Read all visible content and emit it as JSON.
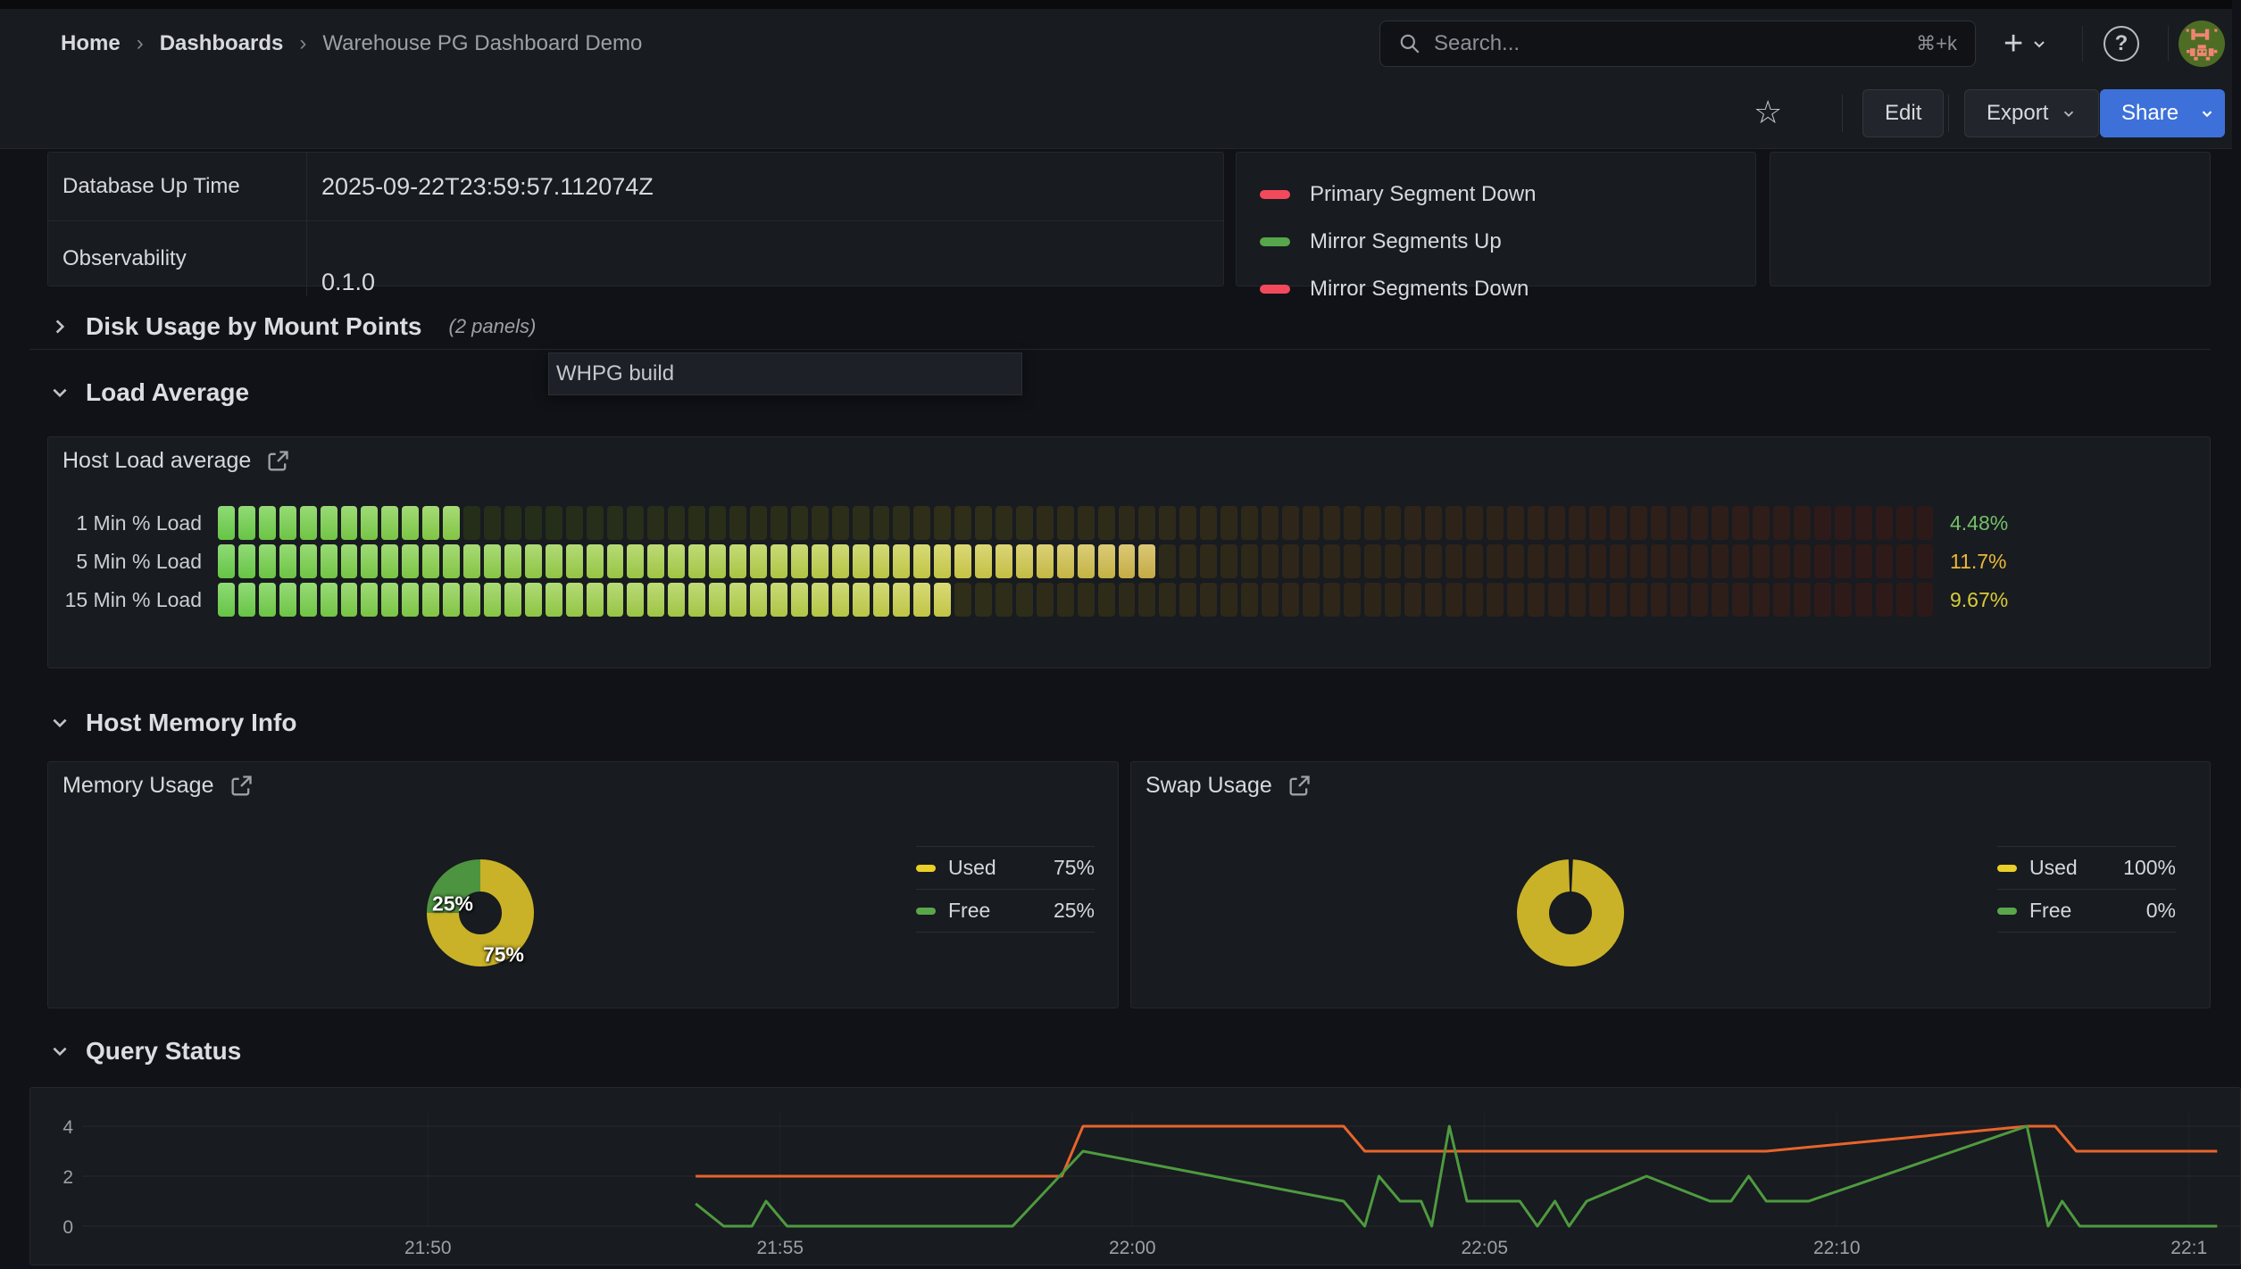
{
  "nav": {
    "breadcrumb": [
      "Home",
      "Dashboards",
      "Warehouse PG Dashboard Demo"
    ],
    "separator": "›",
    "search": {
      "placeholder": "Search...",
      "shortcut": "⌘+k"
    }
  },
  "icons": {
    "plus": "+",
    "help": "?",
    "star": "☆"
  },
  "toolbar": {
    "edit": "Edit",
    "export": "Export",
    "share": "Share"
  },
  "info_table": {
    "rows": [
      {
        "key": "Database Up Time",
        "value": "2025-09-22T23:59:57.112074Z"
      },
      {
        "key": "Observability",
        "value": "0.1.0"
      }
    ]
  },
  "segment_legend": [
    {
      "label": "Primary Segment Down",
      "color": "#f2495c"
    },
    {
      "label": "Mirror Segments Up",
      "color": "#56a64b"
    },
    {
      "label": "Mirror Segments Down",
      "color": "#f2495c"
    }
  ],
  "sections": {
    "disk": {
      "title": "Disk Usage by Mount Points",
      "note": "(2 panels)"
    },
    "load": {
      "title": "Load Average"
    },
    "memory": {
      "title": "Host Memory Info"
    },
    "query": {
      "title": "Query Status"
    }
  },
  "tooltip": {
    "text": "WHPG build"
  },
  "chart_data": [
    {
      "id": "host_load",
      "type": "bar",
      "title": "Host Load average",
      "categories": [
        "1 Min % Load",
        "5 Min % Load",
        "15 Min % Load"
      ],
      "values": [
        4.48,
        11.7,
        9.67
      ],
      "display_values": [
        "4.48%",
        "11.7%",
        "9.67%"
      ],
      "value_colors": [
        "#73bf69",
        "#eab839",
        "#d8cc3a"
      ],
      "gauge": {
        "cells": 84,
        "lit": [
          12,
          46,
          36
        ]
      }
    },
    {
      "id": "memory_usage",
      "type": "pie",
      "donut": true,
      "title": "Memory Usage",
      "labels": [
        "Used",
        "Free"
      ],
      "values": [
        75,
        25
      ],
      "display_values": [
        "75%",
        "25%"
      ],
      "colors": [
        "#c9b227",
        "#4d9440"
      ],
      "legend_colors": [
        "#e9cf28",
        "#5aa64b"
      ]
    },
    {
      "id": "swap_usage",
      "type": "pie",
      "donut": true,
      "title": "Swap Usage",
      "labels": [
        "Used",
        "Free"
      ],
      "values": [
        100,
        0
      ],
      "display_values": [
        "100%",
        "0%"
      ],
      "colors": [
        "#c9b227",
        "#4d9440"
      ],
      "legend_colors": [
        "#e9cf28",
        "#5aa64b"
      ]
    },
    {
      "id": "query_status",
      "type": "line",
      "title": "Query Status",
      "x_unit": "minutes since 21:45",
      "ylim": [
        0,
        4.7
      ],
      "yticks": [
        0,
        2,
        4
      ],
      "xticks": [
        {
          "t": 5,
          "label": "21:50"
        },
        {
          "t": 10,
          "label": "21:55"
        },
        {
          "t": 15,
          "label": "22:00"
        },
        {
          "t": 20,
          "label": "22:05"
        },
        {
          "t": 25,
          "label": "22:10"
        },
        {
          "t": 30,
          "label": "22:1"
        }
      ],
      "series": [
        {
          "name": "series-orange",
          "color": "#e8642c",
          "points": [
            [
              8.8,
              2
            ],
            [
              14.0,
              2
            ],
            [
              14.3,
              4
            ],
            [
              18.0,
              4
            ],
            [
              18.3,
              3
            ],
            [
              24.0,
              3
            ],
            [
              27.7,
              4
            ],
            [
              28.1,
              4
            ],
            [
              28.4,
              3
            ],
            [
              30.4,
              3
            ]
          ]
        },
        {
          "name": "series-green",
          "color": "#4e9a40",
          "points": [
            [
              8.8,
              0.9
            ],
            [
              9.2,
              0
            ],
            [
              9.6,
              0
            ],
            [
              9.8,
              1
            ],
            [
              10.1,
              0
            ],
            [
              13.3,
              0
            ],
            [
              14.3,
              3
            ],
            [
              18.0,
              1
            ],
            [
              18.3,
              0
            ],
            [
              18.5,
              2
            ],
            [
              18.8,
              1
            ],
            [
              19.1,
              1
            ],
            [
              19.25,
              0
            ],
            [
              19.5,
              4
            ],
            [
              19.75,
              1
            ],
            [
              20.5,
              1
            ],
            [
              20.75,
              0
            ],
            [
              21.0,
              1
            ],
            [
              21.2,
              0
            ],
            [
              21.45,
              1
            ],
            [
              22.3,
              2
            ],
            [
              23.2,
              1
            ],
            [
              23.5,
              1
            ],
            [
              23.75,
              2
            ],
            [
              24.0,
              1
            ],
            [
              24.6,
              1
            ],
            [
              27.7,
              4
            ],
            [
              28.0,
              0
            ],
            [
              28.2,
              1
            ],
            [
              28.45,
              0
            ],
            [
              30.4,
              0
            ]
          ]
        }
      ]
    }
  ]
}
